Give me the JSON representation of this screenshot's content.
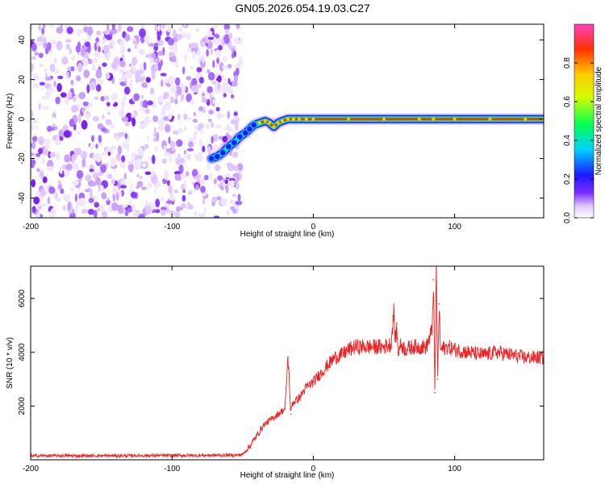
{
  "title": "GN05.2026.054.19.03.C27",
  "chart_data": [
    {
      "type": "heatmap",
      "xlabel": "Height of straight line (km)",
      "ylabel": "Frequency (Hz)",
      "xlim": [
        -200,
        163
      ],
      "ylim": [
        -50,
        48
      ],
      "xticks": [
        -200,
        -100,
        0,
        100
      ],
      "yticks": [
        -40,
        -20,
        0,
        20,
        40
      ],
      "colorbar": {
        "label": "Normalized spectral amplitude",
        "range": [
          0,
          1
        ],
        "ticks": [
          0.0,
          0.2,
          0.4,
          0.6,
          0.8
        ],
        "tick_labels": [
          "0.0",
          "0.2",
          "0.4",
          "0.6",
          "0.8"
        ],
        "colors": [
          "#ffffff",
          "#e0c8ff",
          "#7a2cff",
          "#1a1aff",
          "#00cfff",
          "#00ff55",
          "#d0ff00",
          "#ffcc00",
          "#ff3300",
          "#ff40c0"
        ]
      },
      "noise_region_x": [
        -200,
        -51
      ],
      "trace": {
        "x": [
          -72,
          -68,
          -64,
          -60,
          -56,
          -52,
          -48,
          -45,
          -42,
          -38,
          -34,
          -31,
          -28,
          -25,
          -22,
          -18,
          -14,
          -10,
          -5,
          0,
          25,
          50,
          75,
          85,
          100,
          125,
          150,
          163
        ],
        "y": [
          -20,
          -19,
          -17,
          -14,
          -12,
          -9,
          -7,
          -5,
          -3,
          -2,
          -1,
          -2,
          -4,
          -2,
          -1,
          0,
          0,
          0,
          0,
          0,
          0,
          0,
          0,
          0,
          0,
          0,
          0,
          0
        ]
      }
    },
    {
      "type": "line",
      "xlabel": "Height of straight line (km)",
      "ylabel": "SNR (10 * v/v)",
      "xlim": [
        -200,
        163
      ],
      "ylim": [
        0,
        7200
      ],
      "xticks": [
        -200,
        -100,
        0,
        100
      ],
      "yticks": [
        2000,
        4000,
        6000
      ],
      "series": [
        {
          "color": "#ee2222",
          "x": [
            -200,
            -150,
            -100,
            -60,
            -52,
            -50,
            -45,
            -40,
            -35,
            -30,
            -25,
            -20,
            -18,
            -17,
            -16,
            -15,
            -10,
            -5,
            0,
            5,
            10,
            15,
            20,
            25,
            30,
            40,
            50,
            55,
            57,
            58,
            59,
            60,
            62,
            65,
            70,
            80,
            84,
            85,
            86,
            87,
            88,
            89,
            90,
            95,
            100,
            110,
            120,
            130,
            140,
            150,
            163
          ],
          "y": [
            150,
            150,
            160,
            170,
            180,
            200,
            500,
            900,
            1300,
            1500,
            1700,
            1900,
            3800,
            3000,
            1700,
            2100,
            2300,
            2700,
            2900,
            3200,
            3500,
            3800,
            3900,
            4100,
            4200,
            4200,
            4200,
            4300,
            5500,
            4400,
            4900,
            4000,
            4300,
            4100,
            4200,
            4200,
            4800,
            6700,
            2500,
            7100,
            3000,
            5800,
            4100,
            4200,
            4100,
            4000,
            3900,
            4000,
            3900,
            3800,
            3800
          ]
        }
      ]
    }
  ]
}
